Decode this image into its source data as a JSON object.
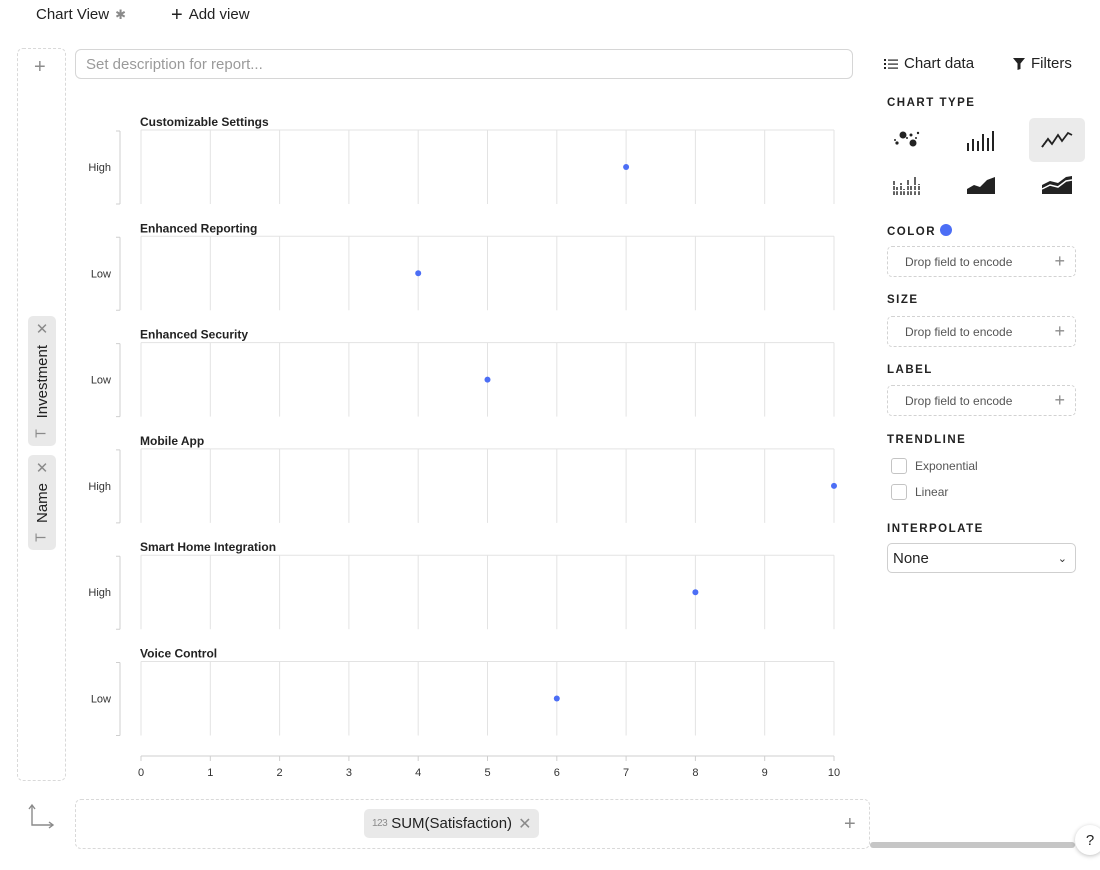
{
  "topbar": {
    "view_label": "Chart View",
    "add_view_label": "Add view"
  },
  "description": {
    "placeholder": "Set description for report...",
    "value": ""
  },
  "left_shelf": {
    "pills": [
      {
        "label": "Investment",
        "type_icon": "T"
      },
      {
        "label": "Name",
        "type_icon": "T"
      }
    ]
  },
  "bottom_shelf": {
    "pill": {
      "label": "SUM(Satisfaction)",
      "type_icon": "123"
    }
  },
  "right_panel": {
    "tabs": {
      "chart_data": "Chart data",
      "filters": "Filters"
    },
    "chart_type_heading": "CHART TYPE",
    "chart_types": [
      "scatter",
      "bar",
      "line",
      "tick",
      "area",
      "stacked-area"
    ],
    "active_chart_type": "line",
    "color_heading": "COLOR",
    "color_value": "#4c6ef5",
    "size_heading": "SIZE",
    "label_heading": "LABEL",
    "drop_placeholder": "Drop field to encode",
    "trendline_heading": "TRENDLINE",
    "trendline_options": [
      {
        "label": "Exponential",
        "checked": false
      },
      {
        "label": "Linear",
        "checked": false
      }
    ],
    "interpolate_heading": "INTERPOLATE",
    "interpolate_value": "None"
  },
  "help_label": "?",
  "chart_data": {
    "type": "scatter",
    "facet_field": "Name",
    "row_field": "Investment",
    "x_field": "SUM(Satisfaction)",
    "xlim": [
      0,
      10
    ],
    "x_ticks": [
      0,
      1,
      2,
      3,
      4,
      5,
      6,
      7,
      8,
      9,
      10
    ],
    "grid": true,
    "point_color": "#4c6ef5",
    "facets": [
      {
        "name": "Customizable Settings",
        "investment": "High",
        "satisfaction": 7
      },
      {
        "name": "Enhanced Reporting",
        "investment": "Low",
        "satisfaction": 4
      },
      {
        "name": "Enhanced Security",
        "investment": "Low",
        "satisfaction": 5
      },
      {
        "name": "Mobile App",
        "investment": "High",
        "satisfaction": 10
      },
      {
        "name": "Smart Home Integration",
        "investment": "High",
        "satisfaction": 8
      },
      {
        "name": "Voice Control",
        "investment": "Low",
        "satisfaction": 6
      }
    ]
  }
}
